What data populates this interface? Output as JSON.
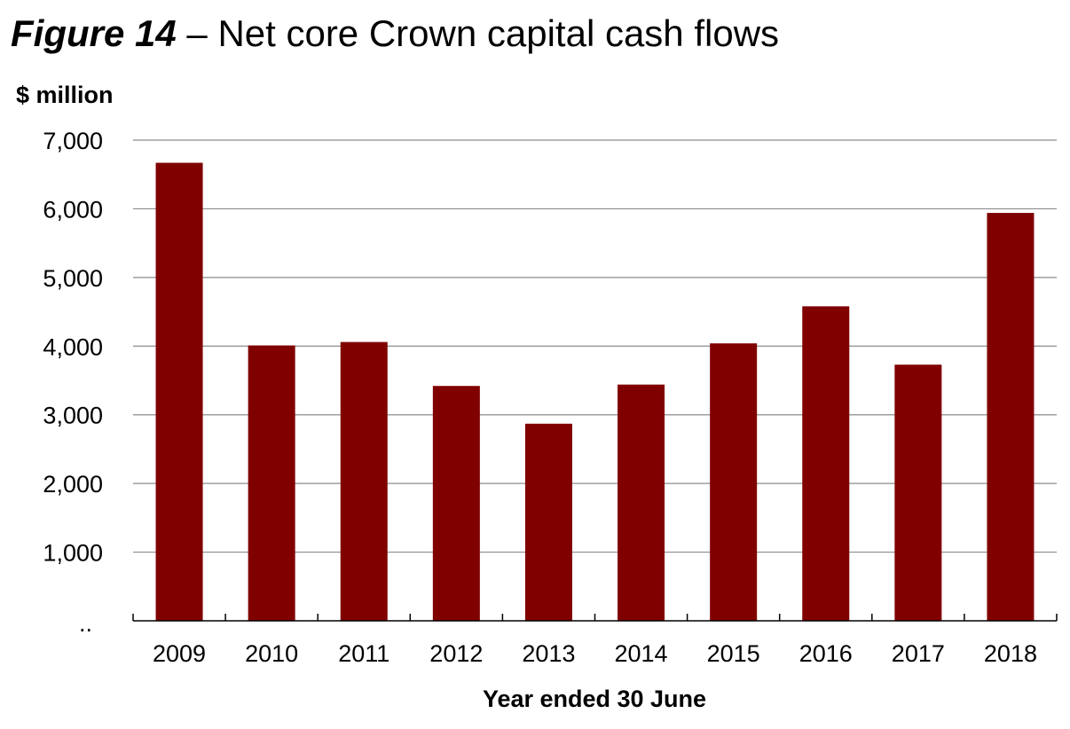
{
  "figure": {
    "label": "Figure 14",
    "separator": " – ",
    "title": "Net core Crown capital cash flows"
  },
  "chart_data": {
    "type": "bar",
    "title": "Figure 14 – Net core Crown capital cash flows",
    "ylabel": "$ million",
    "xlabel": "Year ended 30 June",
    "categories": [
      "2009",
      "2010",
      "2011",
      "2012",
      "2013",
      "2014",
      "2015",
      "2016",
      "2017",
      "2018"
    ],
    "series": [
      {
        "values": [
          6670,
          4010,
          4060,
          3420,
          2870,
          3440,
          4040,
          4580,
          3730,
          5940
        ]
      }
    ],
    "ylim": [
      0,
      7000
    ],
    "yticks": [
      0,
      1000,
      2000,
      3000,
      4000,
      5000,
      6000,
      7000
    ],
    "ytick_labels": [
      "..",
      "1,000",
      "2,000",
      "3,000",
      "4,000",
      "5,000",
      "6,000",
      "7,000"
    ],
    "bar_color": "#800000",
    "grid": true,
    "legend": false
  }
}
